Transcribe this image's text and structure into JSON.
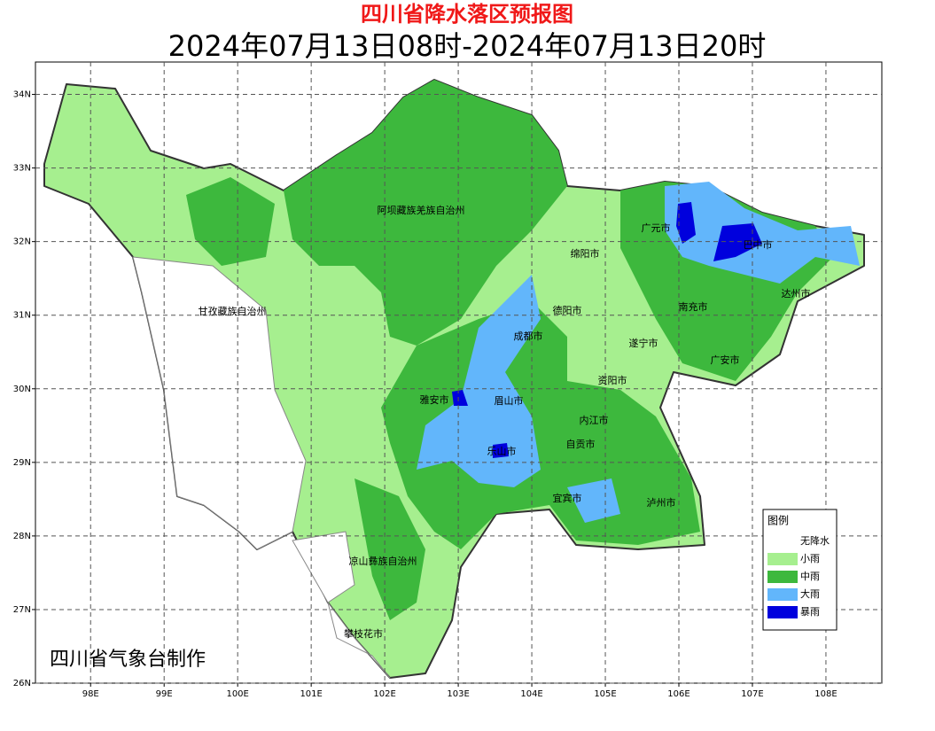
{
  "header": {
    "title": "四川省降水落区预报图",
    "subtitle": "2024年07月13日08时-2024年07月13日20时"
  },
  "map": {
    "lonlim": [
      97.25,
      108.76
    ],
    "latlim": [
      26,
      34.44
    ],
    "lon_ticks": [
      {
        "value": 98,
        "label": "98E"
      },
      {
        "value": 99,
        "label": "99E"
      },
      {
        "value": 100,
        "label": "100E"
      },
      {
        "value": 101,
        "label": "101E"
      },
      {
        "value": 102,
        "label": "102E"
      },
      {
        "value": 103,
        "label": "103E"
      },
      {
        "value": 104,
        "label": "104E"
      },
      {
        "value": 105,
        "label": "105E"
      },
      {
        "value": 106,
        "label": "106E"
      },
      {
        "value": 107,
        "label": "107E"
      },
      {
        "value": 108,
        "label": "108E"
      }
    ],
    "lat_ticks": [
      {
        "value": 26,
        "label": "26N"
      },
      {
        "value": 27,
        "label": "27N"
      },
      {
        "value": 28,
        "label": "28N"
      },
      {
        "value": 29,
        "label": "29N"
      },
      {
        "value": 30,
        "label": "30N"
      },
      {
        "value": 31,
        "label": "31N"
      },
      {
        "value": 32,
        "label": "32N"
      },
      {
        "value": 33,
        "label": "33N"
      },
      {
        "value": 34,
        "label": "34N"
      }
    ],
    "grid": true,
    "cities": [
      "阿坝藏族羌族自治州",
      "广元市",
      "巴中市",
      "绵阳市",
      "达州市",
      "甘孜藏族自治州",
      "德阳市",
      "南充市",
      "成都市",
      "遂宁市",
      "广安市",
      "资阳市",
      "雅安市",
      "眉山市",
      "内江市",
      "自贡市",
      "乐山市",
      "宜宾市",
      "泸州市",
      "凉山彝族自治州",
      "攀枝花市"
    ]
  },
  "legend": {
    "title": "图例",
    "items": [
      {
        "label": "无降水",
        "color": "#ffffff"
      },
      {
        "label": "小雨",
        "color": "#a6ef8f"
      },
      {
        "label": "中雨",
        "color": "#3db83d"
      },
      {
        "label": "大雨",
        "color": "#62b6fb"
      },
      {
        "label": "暴雨",
        "color": "#0000dd"
      }
    ]
  },
  "credit": "四川省气象台制作"
}
